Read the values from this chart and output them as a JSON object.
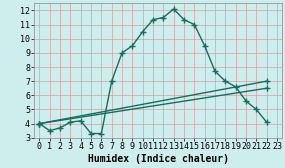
{
  "xlabel": "Humidex (Indice chaleur)",
  "bg_color": "#ceeeed",
  "grid_color": "#d4a0a0",
  "line_color": "#1a6b60",
  "marker": "+",
  "markersize": 4,
  "linewidth": 1.0,
  "xlim": [
    -0.5,
    23.5
  ],
  "ylim": [
    3,
    12.5
  ],
  "xticks": [
    0,
    1,
    2,
    3,
    4,
    5,
    6,
    7,
    8,
    9,
    10,
    11,
    12,
    13,
    14,
    15,
    16,
    17,
    18,
    19,
    20,
    21,
    22,
    23
  ],
  "yticks": [
    3,
    4,
    5,
    6,
    7,
    8,
    9,
    10,
    11,
    12
  ],
  "curve1_x": [
    0,
    1,
    2,
    3,
    4,
    5,
    6,
    7,
    8,
    9,
    10,
    11,
    12,
    13,
    14,
    15,
    16,
    17,
    18,
    19,
    20,
    21,
    22
  ],
  "curve1_y": [
    4.0,
    3.5,
    3.7,
    4.1,
    4.2,
    3.3,
    3.3,
    7.0,
    9.0,
    9.5,
    10.5,
    11.35,
    11.5,
    12.1,
    11.35,
    11.0,
    9.5,
    7.7,
    7.0,
    6.6,
    5.6,
    5.0,
    4.1
  ],
  "curve2_x": [
    0,
    22
  ],
  "curve2_y": [
    4.0,
    6.5
  ],
  "curve3_x": [
    0,
    22
  ],
  "curve3_y": [
    4.0,
    7.0
  ],
  "tick_fontsize": 6,
  "label_fontsize": 7,
  "markeredgewidth": 1.0
}
